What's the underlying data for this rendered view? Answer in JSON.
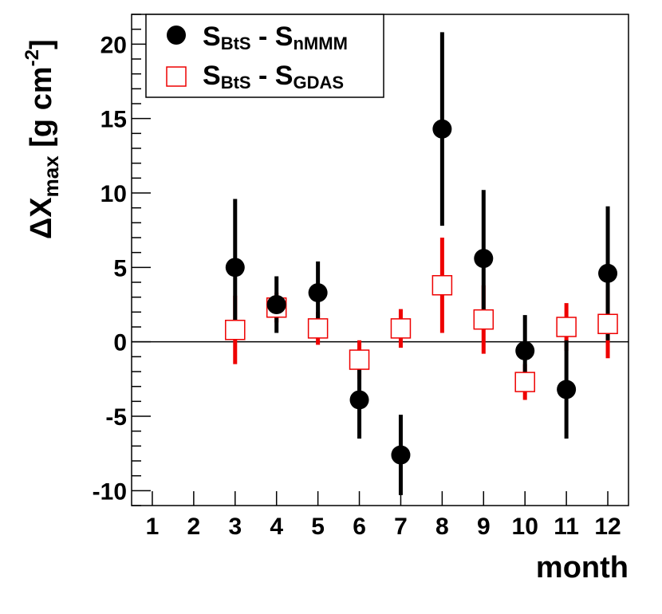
{
  "chart_data": {
    "type": "scatter",
    "xlabel": "month",
    "ylabel": {
      "main": "ΔX",
      "sub": "max",
      "unit_open": " [g cm",
      "unit_sup": "-2",
      "unit_close": "]"
    },
    "xlim": [
      0.5,
      12.5
    ],
    "ylim": [
      -11,
      22
    ],
    "x_ticks": [
      1,
      2,
      3,
      4,
      5,
      6,
      7,
      8,
      9,
      10,
      11,
      12
    ],
    "y_ticks": [
      -10,
      -5,
      0,
      5,
      10,
      15,
      20
    ],
    "y_tick_labels": [
      "-10",
      "-5",
      "0",
      "5",
      "10",
      "15",
      "20"
    ],
    "reference_line": 0,
    "series": [
      {
        "name": "nMMM",
        "label": {
          "main": "S",
          "sub1": "BtS",
          "sep": " - S",
          "sub2": "nMMM"
        },
        "marker": "filled-circle",
        "color": "#000000",
        "errorbar_color": "#000000",
        "points": [
          {
            "x": 3,
            "y": 5.0,
            "err": 4.6
          },
          {
            "x": 4,
            "y": 2.5,
            "err": 1.9
          },
          {
            "x": 5,
            "y": 3.3,
            "err": 2.1
          },
          {
            "x": 6,
            "y": -3.9,
            "err": 2.6
          },
          {
            "x": 7,
            "y": -7.6,
            "err": 2.7
          },
          {
            "x": 8,
            "y": 14.3,
            "err": 6.5
          },
          {
            "x": 9,
            "y": 5.6,
            "err": 4.6
          },
          {
            "x": 10,
            "y": -0.6,
            "err": 2.4
          },
          {
            "x": 11,
            "y": -3.2,
            "err": 3.3
          },
          {
            "x": 12,
            "y": 4.6,
            "err": 4.5
          }
        ]
      },
      {
        "name": "GDAS",
        "label": {
          "main": "S",
          "sub1": "BtS",
          "sep": " - S",
          "sub2": "GDAS"
        },
        "marker": "open-square",
        "color": "#ee0000",
        "errorbar_color": "#ee0000",
        "points": [
          {
            "x": 3,
            "y": 0.8,
            "err": 2.3
          },
          {
            "x": 4,
            "y": 2.3,
            "err": 1.0
          },
          {
            "x": 5,
            "y": 0.9,
            "err": 1.1
          },
          {
            "x": 6,
            "y": -1.2,
            "err": 1.3
          },
          {
            "x": 7,
            "y": 0.9,
            "err": 1.3
          },
          {
            "x": 8,
            "y": 3.8,
            "err": 3.2
          },
          {
            "x": 9,
            "y": 1.5,
            "err": 2.3
          },
          {
            "x": 10,
            "y": -2.7,
            "err": 1.2
          },
          {
            "x": 11,
            "y": 1.0,
            "err": 1.6
          },
          {
            "x": 12,
            "y": 1.2,
            "err": 2.3
          }
        ]
      }
    ]
  }
}
